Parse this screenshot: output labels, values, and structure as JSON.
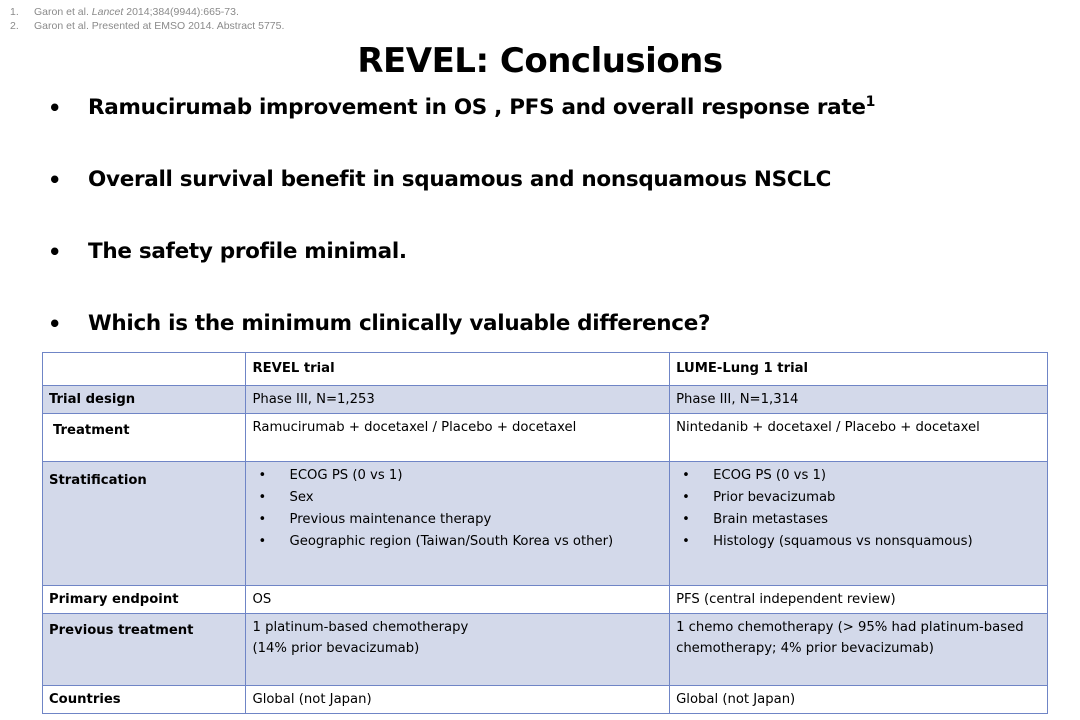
{
  "references": [
    {
      "number": "1.",
      "before": "Garon et al. ",
      "journal": "Lancet",
      "after": " 2014;384(9944):665-73."
    },
    {
      "number": "2.",
      "before": "Garon et al. Presented at EMSO 2014. Abstract 5775.",
      "journal": "",
      "after": ""
    }
  ],
  "title": "REVEL: Conclusions",
  "bullets": [
    {
      "text": "Ramucirumab improvement in OS , PFS  and overall response rate",
      "sup": "1"
    },
    {
      "text": "Overall survival benefit in squamous and nonsquamous NSCLC",
      "sup": ""
    },
    {
      "text": "The safety profile minimal.",
      "sup": ""
    },
    {
      "text": "Which is the minimum clinically valuable difference?",
      "sup": ""
    }
  ],
  "bullet_symbol": "•",
  "table": {
    "header": {
      "label": "",
      "revel": "REVEL trial",
      "lume": "LUME-Lung 1 trial"
    },
    "rows": {
      "design": {
        "label": "Trial design",
        "revel": "Phase III, N=1,253",
        "lume": "Phase III, N=1,314"
      },
      "treatment": {
        "label": "Treatment",
        "revel": "Ramucirumab + docetaxel / Placebo + docetaxel",
        "lume": "Nintedanib + docetaxel / Placebo + docetaxel"
      },
      "stratification": {
        "label": "Stratification",
        "revel": [
          "ECOG PS (0 vs 1)",
          "Sex",
          "Previous maintenance therapy",
          "Geographic region (Taiwan/South Korea vs other)"
        ],
        "lume": [
          "ECOG PS (0 vs 1)",
          "Prior bevacizumab",
          "Brain metastases",
          "Histology (squamous vs nonsquamous)"
        ]
      },
      "endpoint": {
        "label": "Primary endpoint",
        "revel": "OS",
        "lume": "PFS (central independent review)"
      },
      "previous": {
        "label": "Previous treatment",
        "revel": [
          "1 platinum-based chemotherapy",
          "(14% prior bevacizumab)"
        ],
        "lume": "1 chemo chemotherapy (> 95% had platinum-based chemotherapy; 4% prior bevacizumab)"
      },
      "countries": {
        "label": "Countries",
        "revel": "Global (not Japan)",
        "lume": "Global (not Japan)"
      }
    }
  },
  "colors": {
    "even_row": "#d3d9ea",
    "border": "#6f85c6",
    "reference_text": "#8a8a8a"
  }
}
